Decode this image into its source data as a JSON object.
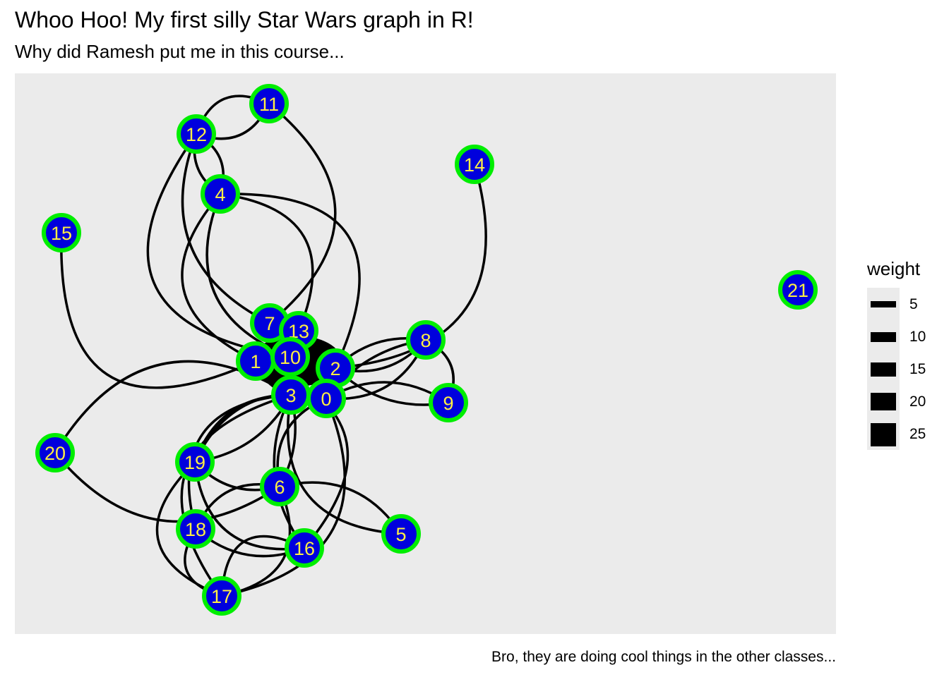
{
  "title": "Whoo Hoo! My first silly Star Wars graph in R!",
  "subtitle": "Why did Ramesh put me in this course...",
  "caption": "Bro, they are doing cool things in the other classes...",
  "legend": {
    "title": "weight",
    "items": [
      "5",
      "10",
      "15",
      "20",
      "25"
    ]
  },
  "colors": {
    "panel": "#ebebeb",
    "edge": "#000000",
    "node_fill": "#0000dd",
    "node_border": "#00ee00",
    "node_label": "#ffee44"
  },
  "nodes": [
    "0",
    "1",
    "2",
    "3",
    "4",
    "5",
    "6",
    "7",
    "8",
    "9",
    "10",
    "11",
    "12",
    "13",
    "14",
    "15",
    "16",
    "17",
    "18",
    "19",
    "20",
    "21"
  ]
}
